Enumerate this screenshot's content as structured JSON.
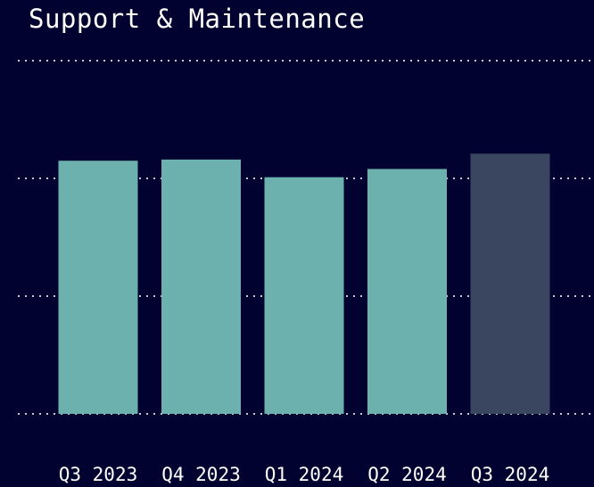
{
  "chart_data": {
    "type": "bar",
    "title": "Support & Maintenance",
    "categories": [
      "Q3 2023",
      "Q4 2023",
      "Q1 2024",
      "Q2 2024",
      "Q3 2024"
    ],
    "values": [
      2.15,
      2.16,
      2.01,
      2.08,
      2.21
    ],
    "highlight_index": 4,
    "ylim": [
      0,
      3
    ],
    "grid": true,
    "colors": {
      "background": "#010230",
      "bar": "#6cb1ad",
      "highlight_bar": "#3a4560",
      "grid": "#c8c8d4",
      "text": "#ffffff"
    }
  }
}
